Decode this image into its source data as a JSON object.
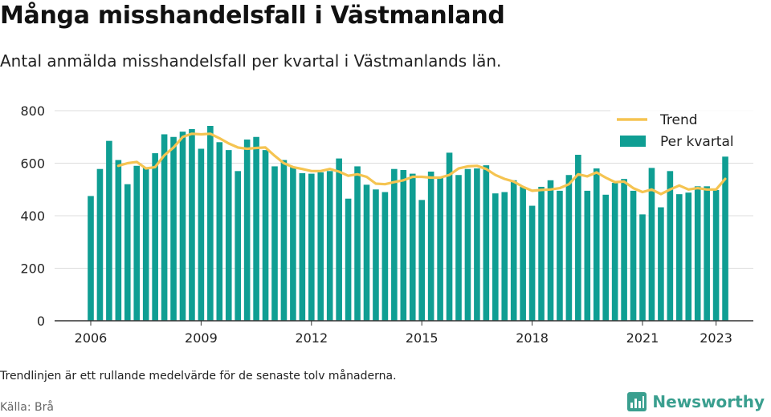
{
  "header": {
    "title": "Många misshandelsfall i Västmanland",
    "subtitle": "Antal anmälda misshandelsfall per kvartal i Västmanlands län."
  },
  "footer": {
    "note": "Trendlinjen är ett rullande medelvärde för de senaste tolv månaderna.",
    "source": "Källa: Brå",
    "brand": "Newsworthy"
  },
  "colors": {
    "bar": "#0f9e93",
    "bar_last": "#0f9e93",
    "trend": "#f5c451",
    "grid": "#dddddd",
    "axis": "#333333"
  },
  "chart_data": {
    "type": "bar",
    "title": "Många misshandelsfall i Västmanland",
    "subtitle": "Antal anmälda misshandelsfall per kvartal i Västmanlands län.",
    "ylim": [
      0,
      800
    ],
    "yticks": [
      0,
      200,
      400,
      600,
      800
    ],
    "xticks": [
      "2006",
      "2009",
      "2012",
      "2015",
      "2018",
      "2021",
      "2023"
    ],
    "xtick_positions": [
      2006,
      2009,
      2012,
      2015,
      2018,
      2021,
      2023
    ],
    "x_start": 2006.0,
    "grid": true,
    "legend_position": "top-right",
    "legend": [
      "Trend",
      "Per kvartal"
    ],
    "series": [
      {
        "name": "Per kvartal",
        "type": "bar",
        "values": [
          475,
          578,
          685,
          612,
          520,
          590,
          585,
          638,
          710,
          700,
          720,
          730,
          655,
          742,
          680,
          650,
          570,
          690,
          700,
          650,
          588,
          612,
          585,
          562,
          560,
          565,
          570,
          618,
          465,
          588,
          518,
          500,
          490,
          578,
          574,
          560,
          460,
          568,
          545,
          640,
          555,
          578,
          580,
          592,
          485,
          490,
          535,
          510,
          438,
          510,
          535,
          495,
          555,
          632,
          495,
          580,
          480,
          525,
          540,
          495,
          405,
          582,
          432,
          570,
          482,
          488,
          512,
          512,
          498,
          625
        ]
      },
      {
        "name": "Trend",
        "type": "line",
        "values": [
          null,
          null,
          null,
          590,
          600,
          605,
          580,
          585,
          630,
          660,
          700,
          712,
          710,
          712,
          695,
          675,
          660,
          655,
          658,
          660,
          628,
          600,
          585,
          578,
          570,
          570,
          578,
          568,
          552,
          558,
          548,
          522,
          520,
          528,
          535,
          548,
          548,
          545,
          545,
          555,
          580,
          588,
          590,
          578,
          555,
          540,
          530,
          510,
          495,
          498,
          500,
          505,
          520,
          558,
          550,
          565,
          545,
          528,
          530,
          505,
          490,
          500,
          482,
          500,
          515,
          500,
          505,
          500,
          500,
          540
        ]
      }
    ]
  }
}
